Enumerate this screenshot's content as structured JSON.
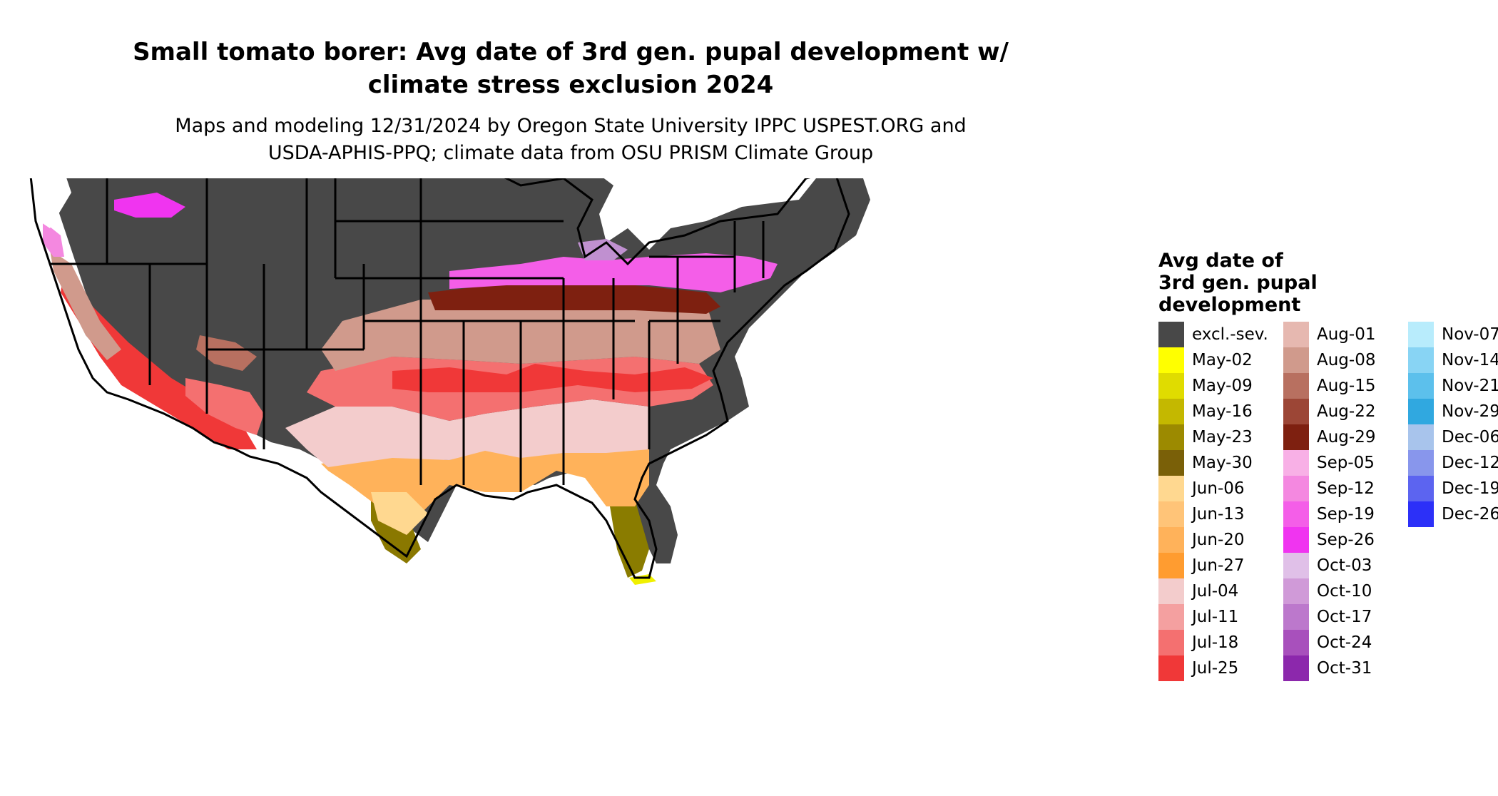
{
  "title_line1": "Small tomato borer: Avg date of 3rd gen. pupal development w/",
  "title_line2": "climate stress exclusion 2024",
  "subtitle_line1": "Maps and modeling 12/31/2024 by Oregon State University IPPC USPEST.ORG and",
  "subtitle_line2": "USDA-APHIS-PPQ; climate data from OSU PRISM Climate Group",
  "legend": {
    "title_line1": "Avg date of",
    "title_line2": "3rd gen. pupal",
    "title_line3": "development",
    "items": [
      {
        "label": "excl.-sev.",
        "color": "#484848"
      },
      {
        "label": "May-02",
        "color": "#ffff00"
      },
      {
        "label": "May-09",
        "color": "#e0dc00"
      },
      {
        "label": "May-16",
        "color": "#c4b800"
      },
      {
        "label": "May-23",
        "color": "#9c8a00"
      },
      {
        "label": "May-30",
        "color": "#7a6008"
      },
      {
        "label": "Jun-06",
        "color": "#ffd890"
      },
      {
        "label": "Jun-13",
        "color": "#ffc478"
      },
      {
        "label": "Jun-20",
        "color": "#ffb25a"
      },
      {
        "label": "Jun-27",
        "color": "#ff9c30"
      },
      {
        "label": "Jul-04",
        "color": "#f3cccc"
      },
      {
        "label": "Jul-11",
        "color": "#f4a0a0"
      },
      {
        "label": "Jul-18",
        "color": "#f47070"
      },
      {
        "label": "Jul-25",
        "color": "#f03838"
      },
      {
        "label": "Aug-01",
        "color": "#e6b8b0"
      },
      {
        "label": "Aug-08",
        "color": "#d09a8c"
      },
      {
        "label": "Aug-15",
        "color": "#b87060"
      },
      {
        "label": "Aug-22",
        "color": "#9c4636"
      },
      {
        "label": "Aug-29",
        "color": "#7e2010"
      },
      {
        "label": "Sep-05",
        "color": "#f8b0e6"
      },
      {
        "label": "Sep-12",
        "color": "#f488e0"
      },
      {
        "label": "Sep-19",
        "color": "#f45ee8"
      },
      {
        "label": "Sep-26",
        "color": "#f034f0"
      },
      {
        "label": "Oct-03",
        "color": "#e0c0e8"
      },
      {
        "label": "Oct-10",
        "color": "#d09ad8"
      },
      {
        "label": "Oct-17",
        "color": "#bc78cc"
      },
      {
        "label": "Oct-24",
        "color": "#a850bc"
      },
      {
        "label": "Oct-31",
        "color": "#8c28ac"
      },
      {
        "label": "Nov-07",
        "color": "#b8ecfc"
      },
      {
        "label": "Nov-14",
        "color": "#88d4f4"
      },
      {
        "label": "Nov-21",
        "color": "#5cc0ec"
      },
      {
        "label": "Nov-29",
        "color": "#30a8e0"
      },
      {
        "label": "Dec-06",
        "color": "#a8c4ec"
      },
      {
        "label": "Dec-12",
        "color": "#8896ec"
      },
      {
        "label": "Dec-19",
        "color": "#5c64f0"
      },
      {
        "label": "Dec-26",
        "color": "#2c30f8"
      }
    ]
  }
}
